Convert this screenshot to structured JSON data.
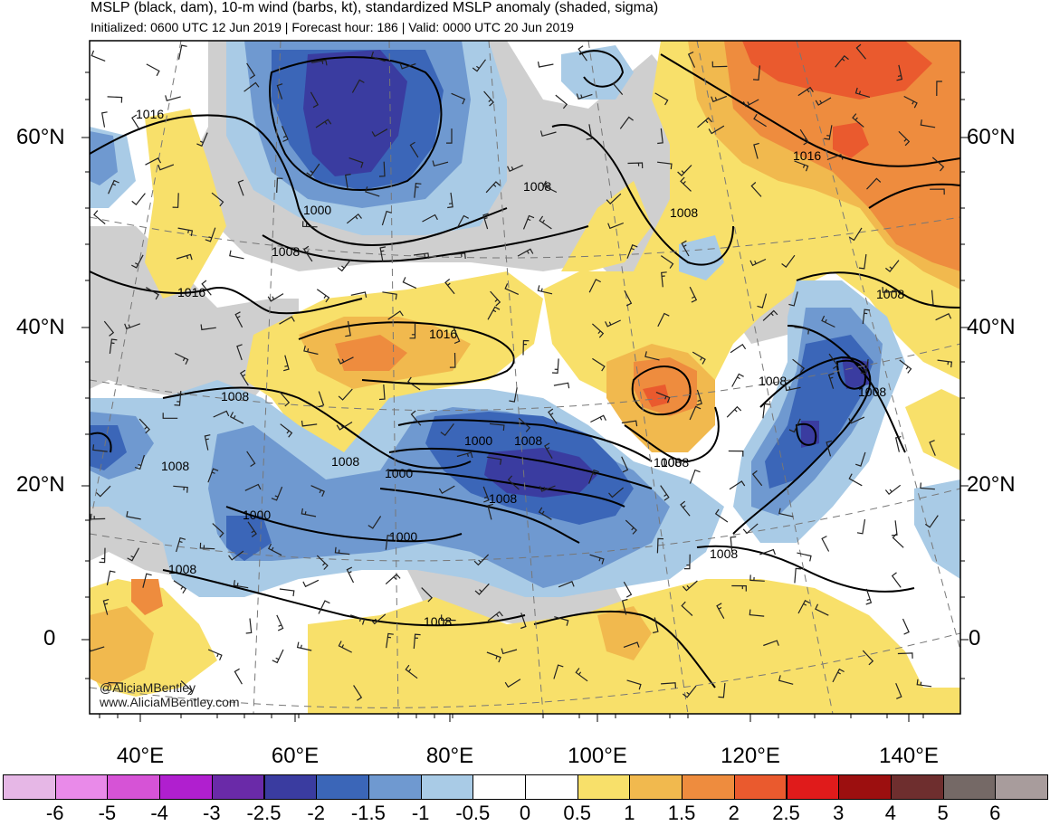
{
  "header": {
    "title": "MSLP (black, dam), 10-m wind (barbs, kt), standardized MSLP anomaly (shaded, sigma)",
    "subtitle": "Initialized: 0600 UTC 12 Jun 2019 | Forecast hour: 186 | Valid: 0000 UTC 20 Jun 2019"
  },
  "map": {
    "lat_labels": [
      "60°N",
      "40°N",
      "20°N",
      "0"
    ],
    "lon_labels": [
      "40°E",
      "60°E",
      "80°E",
      "100°E",
      "120°E",
      "140°E"
    ],
    "isobar_labels": [
      "1016",
      "1000",
      "1008",
      "1008",
      "1008",
      "1016",
      "1016",
      "1016",
      "1008",
      "1008",
      "1008",
      "1000",
      "1008",
      "1008",
      "1000",
      "1008",
      "1000",
      "1000",
      "1008",
      "1008",
      "1008",
      "1008",
      "1008",
      "1008",
      "1008"
    ]
  },
  "credit": {
    "handle": "@AliciaMBentley",
    "website": "www.AliciaMBentley.com"
  },
  "colorbar": {
    "labels": [
      "-6",
      "-5",
      "-4",
      "-3",
      "-2.5",
      "-2",
      "-1.5",
      "-1",
      "-0.5",
      "0",
      "0.5",
      "1",
      "1.5",
      "2",
      "2.5",
      "3",
      "4",
      "5",
      "6"
    ],
    "colors": [
      "#e6b7e6",
      "#e98ae9",
      "#d653d6",
      "#b01fcf",
      "#6a2aa8",
      "#3a3ca0",
      "#3b66b8",
      "#6f99d0",
      "#a9cbe6",
      "#ffffff",
      "#ffffff",
      "#f8e06a",
      "#f1b94e",
      "#ee8c3e",
      "#ea5a2e",
      "#e01b1b",
      "#9c0f0f",
      "#6e2e2e",
      "#756966",
      "#a89c9c"
    ]
  }
}
